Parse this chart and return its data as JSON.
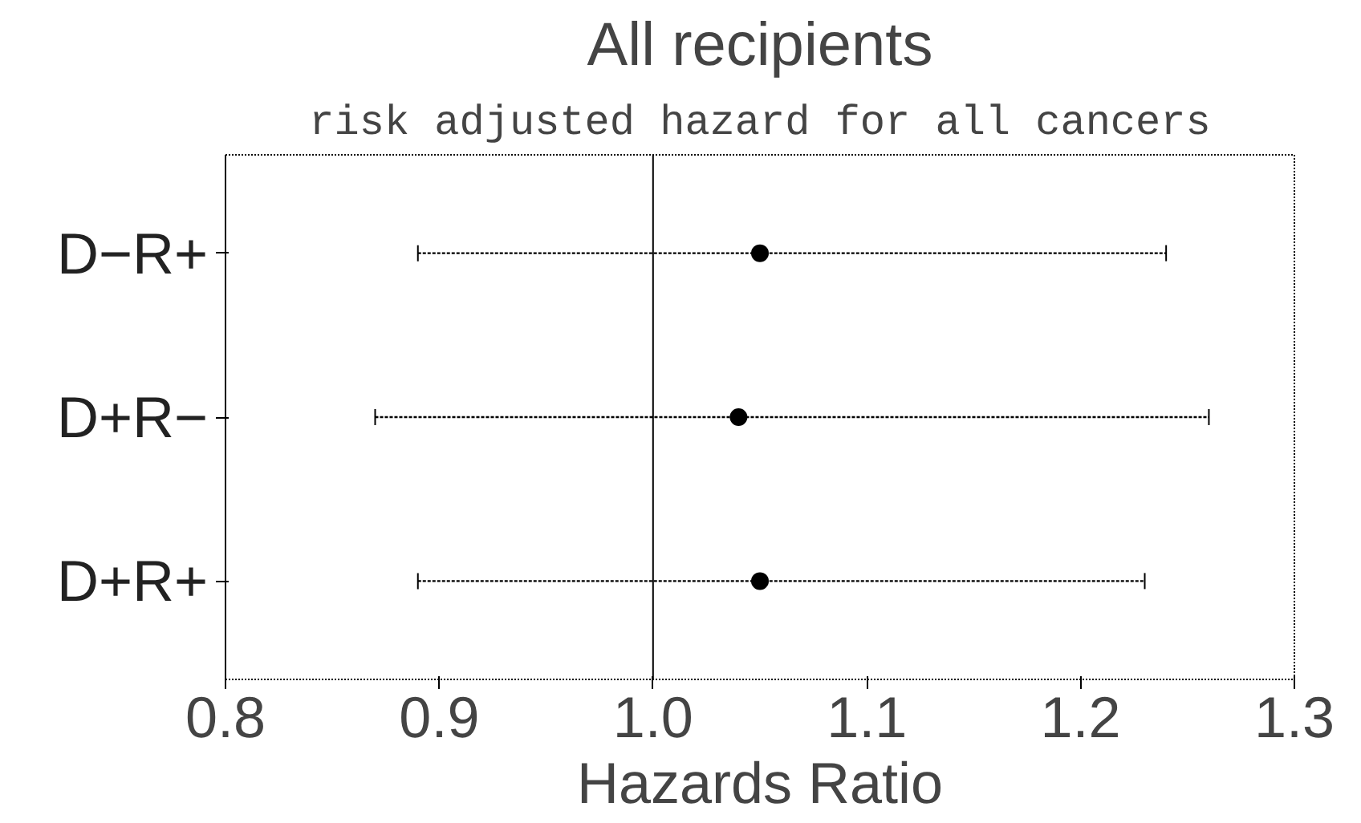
{
  "chart_data": {
    "type": "scatter",
    "title": "All recipients",
    "subtitle": "risk adjusted hazard for all cancers",
    "xlabel": "Hazards Ratio",
    "categories": [
      "D−R+",
      "D+R−",
      "D+R+"
    ],
    "orientation": "horizontal",
    "color": "#000000",
    "marker": "circle",
    "values": [
      1.05,
      1.04,
      1.05
    ],
    "errors": [
      [
        0.89,
        1.24
      ],
      [
        0.87,
        1.26
      ],
      [
        0.89,
        1.23
      ]
    ],
    "xlim": [
      0.8,
      1.3
    ],
    "xticks": [
      0.8,
      0.9,
      {
        "value": 1.0,
        "label": "1.0"
      },
      1.1,
      1.2,
      1.3
    ],
    "ref_lines": [
      {
        "axis": "x",
        "value": 1.0,
        "label": null
      }
    ]
  }
}
